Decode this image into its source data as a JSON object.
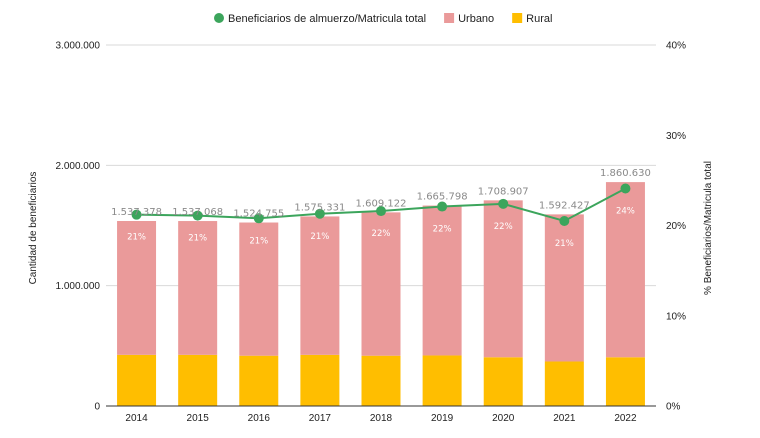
{
  "chart_data": {
    "type": "bar",
    "stacked": true,
    "categories": [
      "2014",
      "2015",
      "2016",
      "2017",
      "2018",
      "2019",
      "2020",
      "2021",
      "2022"
    ],
    "series": [
      {
        "name": "Rural",
        "kind": "bar",
        "axis": "left",
        "color": "#FFBE00",
        "values": [
          425000,
          425000,
          418000,
          425000,
          418000,
          420000,
          405000,
          370000,
          405000
        ]
      },
      {
        "name": "Urbano",
        "kind": "bar",
        "axis": "left",
        "color": "#EA9A9A",
        "values": [
          1112378,
          1112068,
          1106755,
          1150331,
          1191122,
          1245798,
          1303907,
          1222427,
          1455630
        ]
      },
      {
        "name": "Beneficiarios de almuerzo/Matricula total",
        "kind": "line",
        "axis": "right",
        "color": "#3CA55C",
        "values": [
          21.2,
          21.1,
          20.8,
          21.3,
          21.6,
          22.1,
          22.4,
          20.5,
          24.1
        ]
      }
    ],
    "totals": [
      "1.537.378",
      "1.537.068",
      "1.524.755",
      "1.575.331",
      "1.609.122",
      "1.665.798",
      "1.708.907",
      "1.592.427",
      "1.860.630"
    ],
    "pct_labels": [
      "21%",
      "21%",
      "21%",
      "21%",
      "22%",
      "22%",
      "22%",
      "21%",
      "24%"
    ],
    "ylabel": "Cantidad de beneficiarios",
    "y2label": "% Beneficiarios/Matricula total",
    "ylim": [
      0,
      3000000
    ],
    "y2lim": [
      0,
      40
    ],
    "yticks": [
      0,
      1000000,
      2000000,
      3000000
    ],
    "ytick_labels": [
      "0",
      "1.000.000",
      "2.000.000",
      "3.000.000"
    ],
    "y2ticks": [
      0,
      10,
      20,
      30,
      40
    ],
    "y2tick_labels": [
      "0%",
      "10%",
      "20%",
      "30%",
      "40%"
    ],
    "legend": [
      {
        "label": "Beneficiarios de almuerzo/Matricula total",
        "marker": "circle",
        "color": "#3CA55C"
      },
      {
        "label": "Urbano",
        "marker": "square",
        "color": "#EA9A9A"
      },
      {
        "label": "Rural",
        "marker": "square",
        "color": "#FFBE00"
      }
    ],
    "legend_position": "top-center",
    "grid": true
  }
}
